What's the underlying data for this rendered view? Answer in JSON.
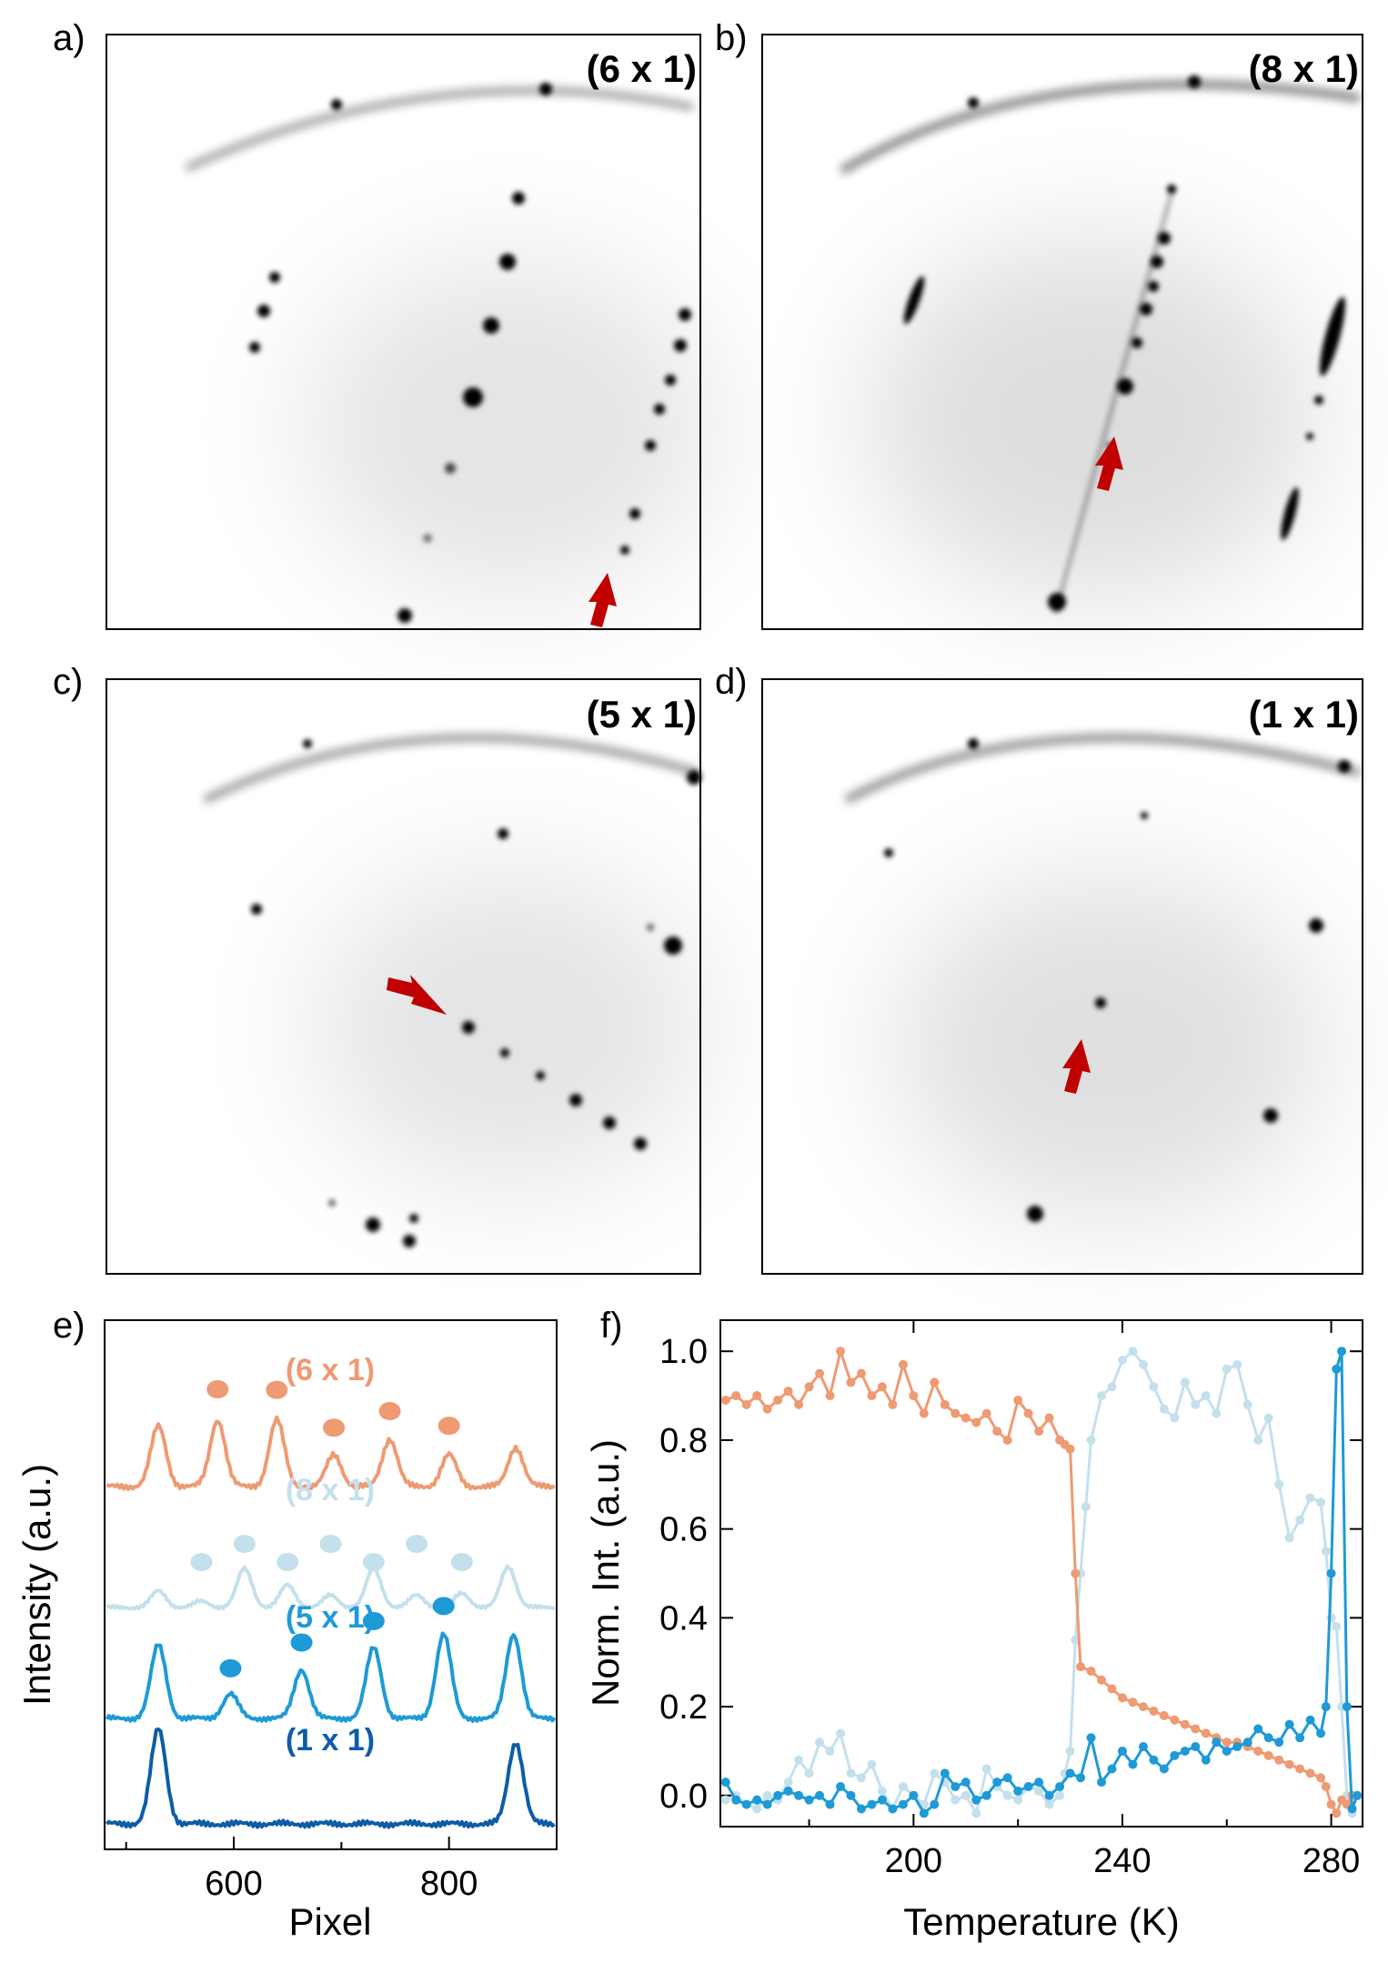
{
  "panels": {
    "a": {
      "label": "a)",
      "tag": "(6 x 1)"
    },
    "b": {
      "label": "b)",
      "tag": "(8 x 1)"
    },
    "c": {
      "label": "c)",
      "tag": "(5 x 1)"
    },
    "d": {
      "label": "d)",
      "tag": "(1 x 1)"
    },
    "e": {
      "label": "e)"
    },
    "f": {
      "label": "f)"
    }
  },
  "colors": {
    "orange": "#EE9A72",
    "light_blue": "#C4E0EC",
    "mid_blue": "#1E9AD6",
    "dark_blue": "#0E5CA8",
    "arrow": "#C00000"
  },
  "chart_data": [
    {
      "type": "line",
      "id": "panel-e",
      "title": "",
      "xlabel": "Pixel",
      "ylabel": "Intensity (a.u.)",
      "xlim": [
        480,
        900
      ],
      "xticks": [
        600,
        800
      ],
      "series": [
        {
          "name": "(6 x 1)",
          "color": "#EE9A72",
          "offset": 3.0,
          "peaks": [
            [
              530,
              0.95
            ],
            [
              585,
              1.05
            ],
            [
              640,
              1.05
            ],
            [
              693,
              0.5
            ],
            [
              745,
              0.75
            ],
            [
              800,
              0.5
            ],
            [
              862,
              0.62
            ]
          ],
          "markers": [
            585,
            640,
            693,
            745,
            800
          ]
        },
        {
          "name": "(8 x 1)",
          "color": "#C4E0EC",
          "offset": 2.0,
          "peaks": [
            [
              530,
              0.4
            ],
            [
              570,
              0.15
            ],
            [
              610,
              0.95
            ],
            [
              650,
              0.55
            ],
            [
              690,
              0.3
            ],
            [
              730,
              0.95
            ],
            [
              770,
              0.3
            ],
            [
              812,
              0.35
            ],
            [
              855,
              1.0
            ]
          ],
          "markers": [
            570,
            610,
            650,
            690,
            730,
            770,
            812
          ]
        },
        {
          "name": "(5 x 1)",
          "color": "#1E9AD6",
          "offset": 1.0,
          "peaks": [
            [
              530,
              1.35
            ],
            [
              597,
              0.45
            ],
            [
              663,
              0.9
            ],
            [
              730,
              1.3
            ],
            [
              795,
              1.55
            ],
            [
              860,
              1.55
            ]
          ],
          "markers": [
            597,
            663,
            730,
            795
          ]
        },
        {
          "name": "(1 x 1)",
          "color": "#0E5CA8",
          "offset": 0.0,
          "peaks": [
            [
              530,
              1.45
            ],
            [
              862,
              1.25
            ]
          ],
          "markers": []
        }
      ]
    },
    {
      "type": "line",
      "id": "panel-f",
      "title": "",
      "xlabel": "Temperature (K)",
      "ylabel": "Norm. Int. (a.u.)",
      "xlim": [
        163,
        286
      ],
      "ylim": [
        -0.07,
        1.07
      ],
      "xticks": [
        200,
        240,
        280
      ],
      "yticks": [
        0.0,
        0.2,
        0.4,
        0.6,
        0.8,
        1.0
      ],
      "series": [
        {
          "name": "(6 x 1)",
          "color": "#EE9A72",
          "x": [
            164,
            166,
            168,
            170,
            172,
            174,
            176,
            178,
            180,
            182,
            184,
            186,
            188,
            190,
            192,
            194,
            196,
            198,
            200,
            202,
            204,
            206,
            208,
            210,
            212,
            214,
            216,
            218,
            220,
            222,
            224,
            226,
            228,
            229,
            230,
            231,
            232,
            234,
            236,
            238,
            240,
            242,
            244,
            246,
            248,
            250,
            252,
            254,
            256,
            258,
            260,
            262,
            264,
            266,
            268,
            270,
            272,
            274,
            276,
            278,
            279,
            280,
            281,
            282,
            283,
            284
          ],
          "y": [
            0.89,
            0.9,
            0.88,
            0.9,
            0.87,
            0.89,
            0.91,
            0.88,
            0.92,
            0.95,
            0.9,
            1.0,
            0.93,
            0.95,
            0.9,
            0.92,
            0.88,
            0.97,
            0.9,
            0.86,
            0.93,
            0.88,
            0.86,
            0.85,
            0.84,
            0.86,
            0.82,
            0.8,
            0.89,
            0.86,
            0.82,
            0.85,
            0.8,
            0.79,
            0.78,
            0.5,
            0.29,
            0.28,
            0.26,
            0.24,
            0.22,
            0.21,
            0.2,
            0.19,
            0.18,
            0.17,
            0.16,
            0.15,
            0.14,
            0.13,
            0.12,
            0.12,
            0.11,
            0.1,
            0.09,
            0.08,
            0.07,
            0.06,
            0.05,
            0.04,
            0.02,
            -0.02,
            -0.04,
            -0.01,
            -0.02,
            0.0
          ]
        },
        {
          "name": "(8 x 1)",
          "color": "#C4E0EC",
          "x": [
            164,
            166,
            168,
            170,
            172,
            174,
            176,
            178,
            180,
            182,
            184,
            186,
            188,
            190,
            192,
            194,
            196,
            198,
            200,
            202,
            204,
            206,
            208,
            210,
            212,
            214,
            216,
            218,
            220,
            222,
            224,
            226,
            228,
            229,
            230,
            231,
            232,
            233,
            234,
            236,
            238,
            240,
            242,
            244,
            246,
            248,
            250,
            252,
            254,
            256,
            258,
            260,
            262,
            264,
            266,
            268,
            270,
            272,
            274,
            276,
            278,
            279,
            280,
            281,
            282,
            283,
            284
          ],
          "y": [
            -0.01,
            0.0,
            -0.02,
            -0.03,
            0.0,
            -0.01,
            0.03,
            0.08,
            0.05,
            0.12,
            0.1,
            0.14,
            0.05,
            0.04,
            0.07,
            0.01,
            -0.03,
            0.02,
            0.0,
            -0.02,
            0.05,
            0.03,
            -0.01,
            0.0,
            -0.04,
            0.06,
            0.02,
            0.0,
            -0.01,
            0.02,
            0.01,
            -0.02,
            0.0,
            0.05,
            0.1,
            0.35,
            0.5,
            0.65,
            0.8,
            0.9,
            0.92,
            0.98,
            1.0,
            0.97,
            0.92,
            0.87,
            0.85,
            0.93,
            0.88,
            0.9,
            0.86,
            0.96,
            0.97,
            0.88,
            0.8,
            0.85,
            0.7,
            0.58,
            0.62,
            0.67,
            0.66,
            0.55,
            0.4,
            0.38,
            0.2,
            0.0,
            -0.04
          ]
        },
        {
          "name": "(5 x 1)",
          "color": "#1E9AD6",
          "x": [
            164,
            166,
            168,
            170,
            172,
            174,
            176,
            178,
            180,
            182,
            184,
            186,
            188,
            190,
            192,
            194,
            196,
            198,
            200,
            202,
            204,
            206,
            208,
            210,
            212,
            214,
            216,
            218,
            220,
            222,
            224,
            226,
            228,
            230,
            232,
            234,
            236,
            238,
            240,
            242,
            244,
            246,
            248,
            250,
            252,
            254,
            256,
            258,
            260,
            262,
            264,
            266,
            268,
            270,
            272,
            274,
            276,
            278,
            279,
            280,
            281,
            282,
            283,
            284,
            285
          ],
          "y": [
            0.03,
            -0.01,
            -0.02,
            -0.01,
            -0.02,
            0.0,
            0.01,
            0.0,
            -0.01,
            0.0,
            -0.02,
            0.02,
            0.0,
            -0.03,
            -0.02,
            -0.01,
            -0.03,
            -0.02,
            0.0,
            -0.04,
            -0.02,
            0.05,
            0.02,
            0.03,
            -0.01,
            0.0,
            0.03,
            0.04,
            0.01,
            0.02,
            0.03,
            0.0,
            0.02,
            0.05,
            0.04,
            0.13,
            0.03,
            0.06,
            0.1,
            0.07,
            0.11,
            0.08,
            0.06,
            0.09,
            0.1,
            0.11,
            0.08,
            0.12,
            0.1,
            0.11,
            0.12,
            0.15,
            0.13,
            0.12,
            0.16,
            0.13,
            0.17,
            0.14,
            0.2,
            0.5,
            0.96,
            1.0,
            0.2,
            -0.03,
            0.0
          ]
        }
      ]
    }
  ]
}
